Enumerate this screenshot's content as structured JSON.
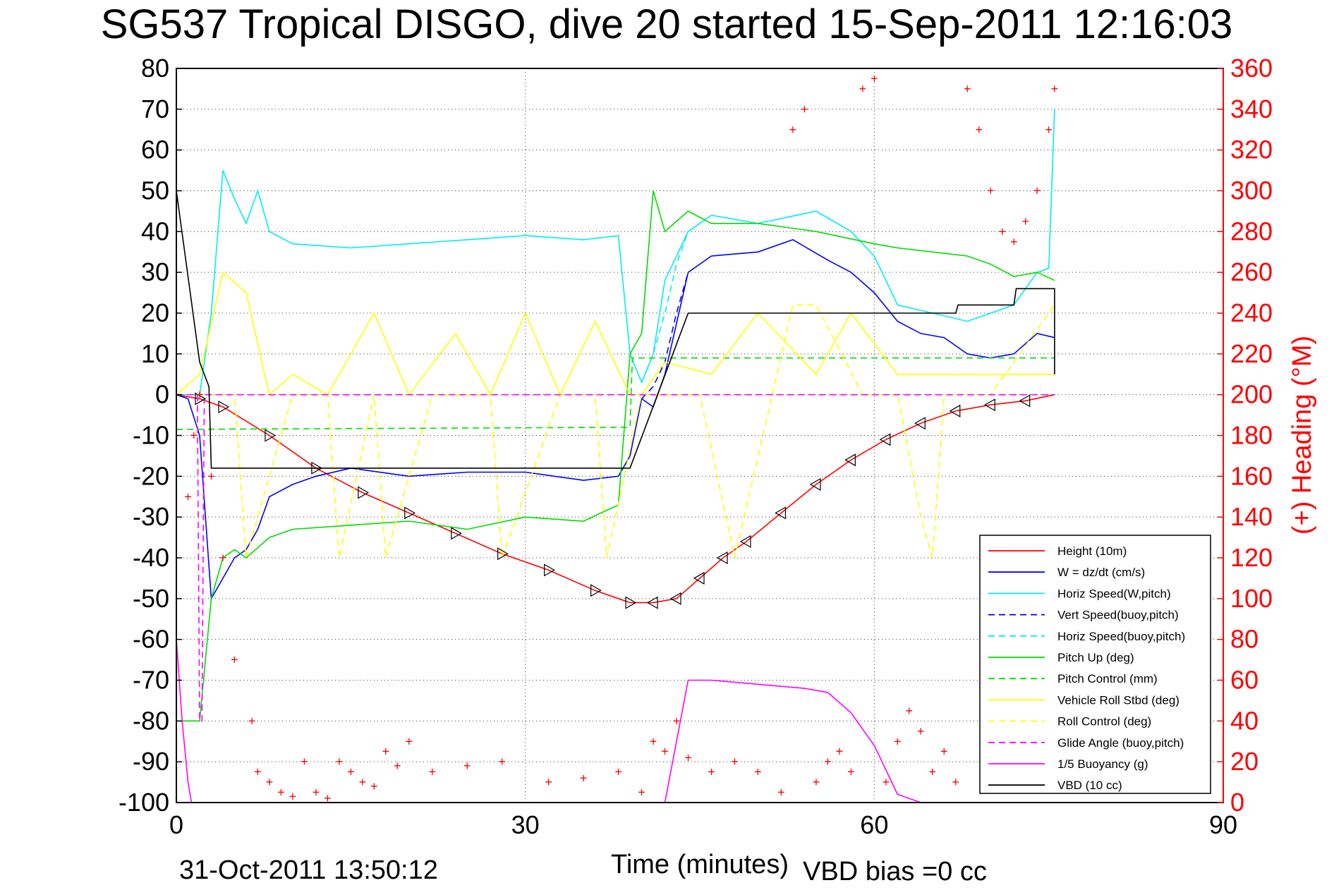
{
  "chart_data": {
    "type": "line",
    "title": "SG537 Tropical DISGO, dive 20 started 15-Sep-2011 12:16:03",
    "xlabel": "Time (minutes)",
    "ylabel_right": "(+) Heading (°M)",
    "footer_left": "31-Oct-2011 13:50:12",
    "footer_right": "VBD bias =0 cc",
    "xlim": [
      0,
      90
    ],
    "ylim_left": [
      -100,
      80
    ],
    "ylim_right": [
      0,
      360
    ],
    "xticks": [
      "0",
      "30",
      "60",
      "90"
    ],
    "yticks_left": [
      "80",
      "70",
      "60",
      "50",
      "40",
      "30",
      "20",
      "10",
      "0",
      "-10",
      "-20",
      "-30",
      "-40",
      "-50",
      "-60",
      "-70",
      "-80",
      "-90",
      "-100"
    ],
    "yticks_right": [
      "360",
      "340",
      "320",
      "300",
      "280",
      "260",
      "240",
      "220",
      "200",
      "180",
      "160",
      "140",
      "120",
      "100",
      "80",
      "60",
      "40",
      "20",
      "0"
    ],
    "grid": true,
    "legend_position": "lower-right",
    "series": [
      {
        "name": "Height (10m)",
        "color": "#ff0000",
        "style": "solid",
        "x": [
          0,
          2,
          4,
          8,
          12,
          16,
          20,
          24,
          28,
          32,
          36,
          39,
          41,
          43,
          45,
          47,
          49,
          52,
          55,
          58,
          61,
          64,
          67,
          70,
          73,
          75.5
        ],
        "y": [
          0,
          -1,
          -3,
          -10,
          -18,
          -24,
          -29,
          -34,
          -39,
          -43,
          -48,
          -51,
          -51,
          -50,
          -45,
          -40,
          -36,
          -29,
          -22,
          -16,
          -11,
          -7,
          -4,
          -2.5,
          -1.5,
          0
        ]
      },
      {
        "name": "W = dz/dt (cm/s)",
        "color": "#0000ff",
        "style": "solid",
        "x": [
          0,
          1,
          2,
          3,
          4,
          5,
          6,
          7,
          8,
          10,
          12,
          15,
          20,
          25,
          30,
          35,
          38,
          39,
          40,
          41,
          42,
          44,
          46,
          50,
          53,
          56,
          58,
          60,
          62,
          64,
          66,
          68,
          70,
          72,
          74,
          75.5
        ],
        "y": [
          0,
          -1,
          -10,
          -50,
          -45,
          -40,
          -38,
          -33,
          -25,
          -22,
          -20,
          -18,
          -20,
          -19,
          -19,
          -21,
          -20,
          -15,
          -1,
          -3,
          5,
          30,
          34,
          35,
          38,
          33,
          30,
          25,
          18,
          15,
          14,
          10,
          9,
          10,
          15,
          14
        ]
      },
      {
        "name": "Horiz Speed(W,pitch)",
        "color": "#00eeee",
        "style": "solid",
        "x": [
          0,
          1,
          2,
          3,
          4,
          5,
          6,
          7,
          8,
          10,
          15,
          20,
          25,
          30,
          35,
          38,
          39,
          40,
          41,
          42,
          44,
          46,
          50,
          55,
          58,
          60,
          62,
          65,
          68,
          70,
          72,
          74,
          75,
          75.5
        ],
        "y": [
          0,
          0,
          0,
          20,
          55,
          48,
          42,
          50,
          40,
          37,
          36,
          37,
          38,
          39,
          38,
          39,
          10,
          3,
          10,
          28,
          40,
          44,
          42,
          45,
          40,
          34,
          22,
          20,
          18,
          20,
          22,
          30,
          31,
          70
        ]
      },
      {
        "name": "Vert Speed(buoy,pitch)",
        "color": "#0000ff",
        "style": "dashed",
        "x": [
          40,
          41,
          42,
          43,
          44
        ],
        "y": [
          -1,
          2,
          8,
          20,
          30
        ]
      },
      {
        "name": "Horiz Speed(buoy,pitch)",
        "color": "#00eeee",
        "style": "dashed",
        "x": [
          40,
          41,
          42,
          43,
          44
        ],
        "y": [
          3,
          10,
          20,
          32,
          40
        ]
      },
      {
        "name": "Pitch Up (deg)",
        "color": "#00dd00",
        "style": "solid",
        "x": [
          0,
          1,
          2,
          3,
          4,
          5,
          6,
          8,
          10,
          15,
          20,
          25,
          30,
          35,
          38,
          39,
          40,
          41,
          42,
          44,
          46,
          50,
          55,
          60,
          62,
          65,
          68,
          70,
          72,
          74,
          75.5
        ],
        "y": [
          -80,
          -80,
          -80,
          -50,
          -40,
          -38,
          -40,
          -35,
          -33,
          -32,
          -31,
          -33,
          -30,
          -31,
          -27,
          10,
          15,
          50,
          40,
          45,
          42,
          42,
          40,
          37,
          36,
          35,
          34,
          32,
          29,
          30,
          28
        ]
      },
      {
        "name": "Pitch Control (mm)",
        "color": "#00dd00",
        "style": "dashed",
        "x": [
          0,
          39,
          39.2,
          75.5
        ],
        "y": [
          -8.5,
          -8,
          9,
          9
        ]
      },
      {
        "name": "Vehicle Roll Stbd (deg)",
        "color": "#ffff00",
        "style": "solid",
        "x": [
          0,
          2,
          4,
          6,
          8,
          10,
          13,
          17,
          20,
          24,
          27,
          30,
          33,
          36,
          39,
          40,
          42,
          46,
          50,
          55,
          58,
          62,
          64,
          66,
          70,
          75.5
        ],
        "y": [
          0,
          5,
          30,
          25,
          0,
          5,
          0,
          20,
          0,
          15,
          0,
          20,
          0,
          18,
          0,
          0,
          8,
          5,
          20,
          5,
          20,
          5,
          5,
          5,
          5,
          5
        ]
      },
      {
        "name": "Roll Control (deg)",
        "color": "#ffff00",
        "style": "dashed",
        "x": [
          0,
          5,
          6,
          10,
          13,
          14,
          17,
          18,
          22,
          27,
          28,
          33,
          36,
          37,
          40,
          45,
          48,
          53,
          55,
          59,
          62,
          64,
          65,
          66,
          70,
          75.5
        ],
        "y": [
          0,
          0,
          -40,
          0,
          0,
          -40,
          0,
          -40,
          0,
          0,
          -40,
          0,
          0,
          -40,
          0,
          0,
          -40,
          22,
          22,
          0,
          0,
          -30,
          -40,
          0,
          0,
          22
        ]
      },
      {
        "name": "Glide Angle (buoy,pitch)",
        "color": "#ff00ff",
        "style": "dashed",
        "x": [
          0,
          1.8,
          2,
          2.2,
          2.4,
          75.5
        ],
        "y": [
          0,
          0,
          -80,
          -80,
          0,
          0
        ]
      },
      {
        "name": "1/5 Buoyancy (g)",
        "color": "#ff00ff",
        "style": "solid",
        "x": [
          0,
          0.5,
          1,
          1.3,
          42,
          44,
          46,
          50,
          54,
          56,
          58,
          60,
          62,
          64
        ],
        "y": [
          -60,
          -80,
          -95,
          -100,
          -100,
          -70,
          -70,
          -71,
          -72,
          -73,
          -78,
          -86,
          -98,
          -100
        ]
      },
      {
        "name": "VBD (10 cc)",
        "color": "#000000",
        "style": "solid",
        "x": [
          0,
          2,
          2.8,
          3,
          39,
          44,
          45,
          67,
          67.2,
          72,
          72.2,
          75.5,
          75.5
        ],
        "y": [
          50,
          8,
          2,
          -18,
          -18,
          20,
          20,
          20,
          22,
          22,
          26,
          26,
          5
        ]
      }
    ],
    "heading_markers": {
      "name": "(+) Heading",
      "color": "#ff0000",
      "axis": "right",
      "x": [
        1,
        1.5,
        2,
        3,
        4,
        5,
        6.5,
        7,
        8,
        9,
        10,
        11,
        12,
        13,
        14,
        15,
        16,
        17,
        18,
        19,
        20,
        22,
        25,
        28,
        32,
        35,
        38,
        40,
        41,
        42,
        43,
        44,
        46,
        48,
        50,
        52,
        53,
        54,
        55,
        56,
        57,
        58,
        59,
        60,
        61,
        62,
        63,
        64,
        65,
        66,
        67,
        68,
        69,
        70,
        71,
        72,
        73,
        74,
        75,
        75.5
      ],
      "y": [
        150,
        180,
        200,
        160,
        120,
        70,
        40,
        15,
        10,
        5,
        3,
        20,
        5,
        2,
        20,
        15,
        10,
        8,
        25,
        18,
        30,
        15,
        18,
        20,
        10,
        12,
        15,
        5,
        30,
        25,
        40,
        22,
        15,
        20,
        15,
        5,
        330,
        340,
        10,
        20,
        25,
        15,
        350,
        355,
        10,
        30,
        45,
        35,
        15,
        25,
        10,
        350,
        330,
        300,
        280,
        275,
        285,
        300,
        330,
        350
      ]
    }
  }
}
